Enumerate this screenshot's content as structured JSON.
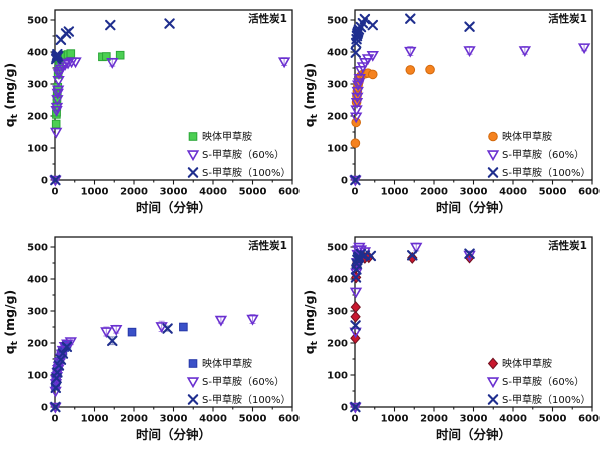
{
  "page": {
    "background": "#ffffff",
    "figure_type": "2x2 adsorption kinetics scatter plots"
  },
  "chart_data": [
    {
      "type": "scatter",
      "panel": "top-left",
      "title": "活性炭1",
      "xlabel": "时间（分钟）",
      "ylabel": "qt (mg/g)",
      "ylabel_main": "q",
      "ylabel_sub": "t",
      "ylabel_units": " (mg/g)",
      "xlim": [
        0,
        6000
      ],
      "ylim": [
        0,
        500
      ],
      "xticks": [
        0,
        1000,
        2000,
        3000,
        4000,
        5000,
        6000
      ],
      "yticks": [
        0,
        100,
        200,
        300,
        400,
        500
      ],
      "legend_position": "bottom-right-inside",
      "grid": false,
      "series": [
        {
          "name": "映体甲草胺",
          "marker": "square",
          "fill": "#4ccf53",
          "stroke": "#2aa637",
          "points": [
            [
              30,
              175
            ],
            [
              35,
              205
            ],
            [
              40,
              212
            ],
            [
              45,
              230
            ],
            [
              50,
              255
            ],
            [
              55,
              270
            ],
            [
              60,
              280
            ],
            [
              70,
              290
            ],
            [
              80,
              330
            ],
            [
              90,
              345
            ],
            [
              100,
              362
            ],
            [
              120,
              370
            ],
            [
              150,
              378
            ],
            [
              200,
              385
            ],
            [
              260,
              390
            ],
            [
              330,
              392
            ],
            [
              400,
              395
            ],
            [
              1200,
              385,
              10
            ],
            [
              1300,
              386
            ],
            [
              1650,
              390
            ]
          ]
        },
        {
          "name": "S-甲草胺（60%）",
          "marker": "triangle-down-open",
          "fill": "none",
          "stroke": "#6a30d0",
          "points": [
            [
              10,
              0
            ],
            [
              30,
              150
            ],
            [
              40,
              218
            ],
            [
              50,
              228
            ],
            [
              60,
              252
            ],
            [
              70,
              272
            ],
            [
              80,
              282
            ],
            [
              90,
              312
            ],
            [
              100,
              333
            ],
            [
              120,
              340
            ],
            [
              150,
              347
            ],
            [
              200,
              355
            ],
            [
              260,
              362
            ],
            [
              330,
              366
            ],
            [
              420,
              370
            ],
            [
              520,
              370
            ],
            [
              1450,
              368,
              12
            ],
            [
              5800,
              370,
              12
            ]
          ]
        },
        {
          "name": "S-甲草胺（100%）",
          "marker": "x",
          "fill": "none",
          "stroke": "#1f2e8e",
          "points": [
            [
              10,
              0
            ],
            [
              30,
              378
            ],
            [
              40,
              383
            ],
            [
              50,
              388
            ],
            [
              60,
              393
            ],
            [
              80,
              386
            ],
            [
              150,
              438
            ],
            [
              280,
              458
            ],
            [
              350,
              464
            ],
            [
              1400,
              484
            ],
            [
              2900,
              489
            ]
          ]
        }
      ]
    },
    {
      "type": "scatter",
      "panel": "top-right",
      "title": "活性炭1",
      "xlabel": "时间（分钟）",
      "ylabel": "qt (mg/g)",
      "ylabel_main": "q",
      "ylabel_sub": "t",
      "ylabel_units": " (mg/g)",
      "xlim": [
        0,
        6000
      ],
      "ylim": [
        0,
        500
      ],
      "xticks": [
        0,
        1000,
        2000,
        3000,
        4000,
        5000,
        6000
      ],
      "yticks": [
        0,
        100,
        200,
        300,
        400,
        500
      ],
      "legend_position": "bottom-right-inside",
      "grid": false,
      "series": [
        {
          "name": "映体甲草胺",
          "marker": "circle",
          "fill": "#f5821f",
          "stroke": "#d2690d",
          "points": [
            [
              10,
              115
            ],
            [
              30,
              180
            ],
            [
              40,
              243
            ],
            [
              50,
              262
            ],
            [
              60,
              278
            ],
            [
              70,
              290
            ],
            [
              80,
              298
            ],
            [
              100,
              308
            ],
            [
              120,
              318
            ],
            [
              150,
              325
            ],
            [
              200,
              330
            ],
            [
              260,
              332
            ],
            [
              330,
              334
            ],
            [
              450,
              330
            ],
            [
              1400,
              344,
              10
            ],
            [
              1900,
              345
            ]
          ]
        },
        {
          "name": "S-甲草胺（60%）",
          "marker": "triangle-down-open",
          "fill": "none",
          "stroke": "#6a30d0",
          "points": [
            [
              10,
              0
            ],
            [
              30,
              198
            ],
            [
              40,
              220
            ],
            [
              50,
              243
            ],
            [
              60,
              260
            ],
            [
              70,
              278
            ],
            [
              80,
              298
            ],
            [
              100,
              305
            ],
            [
              120,
              318
            ],
            [
              150,
              343
            ],
            [
              200,
              355
            ],
            [
              260,
              368
            ],
            [
              330,
              380
            ],
            [
              450,
              390
            ],
            [
              1400,
              403,
              14
            ],
            [
              2900,
              405,
              12
            ],
            [
              4300,
              405,
              12
            ],
            [
              5800,
              414,
              10
            ]
          ]
        },
        {
          "name": "S-甲草胺（100%）",
          "marker": "x",
          "fill": "none",
          "stroke": "#1f2e8e",
          "points": [
            [
              10,
              0
            ],
            [
              20,
              398
            ],
            [
              30,
              428
            ],
            [
              40,
              440
            ],
            [
              50,
              450
            ],
            [
              60,
              456
            ],
            [
              70,
              460
            ],
            [
              80,
              464
            ],
            [
              100,
              470
            ],
            [
              150,
              478
            ],
            [
              200,
              490
            ],
            [
              250,
              503
            ],
            [
              450,
              484
            ],
            [
              1400,
              504
            ],
            [
              2900,
              479
            ]
          ]
        }
      ]
    },
    {
      "type": "scatter",
      "panel": "bottom-left",
      "title": "活性炭1",
      "xlabel": "时间（分钟）",
      "ylabel": "qt (mg/g)",
      "ylabel_main": "q",
      "ylabel_sub": "t",
      "ylabel_units": " (mg/g)",
      "xlim": [
        0,
        6000
      ],
      "ylim": [
        0,
        500
      ],
      "xticks": [
        0,
        1000,
        2000,
        3000,
        4000,
        5000,
        6000
      ],
      "yticks": [
        0,
        100,
        200,
        300,
        400,
        500
      ],
      "legend_position": "bottom-right-inside",
      "grid": false,
      "series": [
        {
          "name": "映体甲草胺",
          "marker": "square",
          "fill": "#3a50c8",
          "stroke": "#2638a8",
          "points": [
            [
              10,
              65
            ],
            [
              20,
              78
            ],
            [
              30,
              88
            ],
            [
              40,
              98
            ],
            [
              50,
              110
            ],
            [
              60,
              120
            ],
            [
              80,
              130
            ],
            [
              100,
              142
            ],
            [
              150,
              160
            ],
            [
              200,
              174
            ],
            [
              250,
              186
            ],
            [
              300,
              196
            ],
            [
              1950,
              234,
              10
            ],
            [
              3250,
              250,
              8
            ]
          ]
        },
        {
          "name": "S-甲草胺（60%）",
          "marker": "triangle-down-open",
          "fill": "none",
          "stroke": "#6a30d0",
          "points": [
            [
              10,
              0
            ],
            [
              15,
              50
            ],
            [
              25,
              74
            ],
            [
              35,
              86
            ],
            [
              50,
              96
            ],
            [
              65,
              108
            ],
            [
              80,
              118
            ],
            [
              100,
              128
            ],
            [
              120,
              140
            ],
            [
              150,
              154
            ],
            [
              175,
              166
            ],
            [
              200,
              178
            ],
            [
              250,
              190
            ],
            [
              310,
              198
            ],
            [
              400,
              205,
              10
            ],
            [
              1300,
              236,
              14
            ],
            [
              1550,
              243,
              12
            ],
            [
              2700,
              252,
              16
            ],
            [
              4200,
              272,
              10
            ],
            [
              5000,
              275,
              14
            ]
          ]
        },
        {
          "name": "S-甲草胺（100%）",
          "marker": "x",
          "fill": "none",
          "stroke": "#1f2e8e",
          "points": [
            [
              10,
              0
            ],
            [
              20,
              60
            ],
            [
              40,
              90
            ],
            [
              60,
              108
            ],
            [
              100,
              130
            ],
            [
              150,
              148
            ],
            [
              200,
              167
            ],
            [
              300,
              188
            ],
            [
              1450,
              207,
              12
            ],
            [
              2850,
              245,
              8
            ]
          ]
        }
      ]
    },
    {
      "type": "scatter",
      "panel": "bottom-right",
      "title": "活性炭1",
      "xlabel": "时间（分钟）",
      "ylabel": "qt (mg/g)",
      "ylabel_main": "q",
      "ylabel_sub": "t",
      "ylabel_units": " (mg/g)",
      "xlim": [
        0,
        6000
      ],
      "ylim": [
        0,
        500
      ],
      "xticks": [
        0,
        1000,
        2000,
        3000,
        4000,
        5000,
        6000
      ],
      "yticks": [
        0,
        100,
        200,
        300,
        400,
        500
      ],
      "legend_position": "bottom-right-inside",
      "grid": false,
      "series": [
        {
          "name": "映体甲草胺",
          "marker": "diamond",
          "fill": "#c9182e",
          "stroke": "#70101f",
          "points": [
            [
              10,
              215
            ],
            [
              15,
              282
            ],
            [
              20,
              312
            ],
            [
              30,
              405
            ],
            [
              40,
              438
            ],
            [
              50,
              448
            ],
            [
              60,
              454
            ],
            [
              80,
              458
            ],
            [
              100,
              461
            ],
            [
              150,
              464
            ],
            [
              250,
              466
            ],
            [
              350,
              468
            ],
            [
              1450,
              466
            ],
            [
              2900,
              467
            ]
          ]
        },
        {
          "name": "S-甲草胺（60%）",
          "marker": "triangle-down-open",
          "fill": "none",
          "stroke": "#6a30d0",
          "points": [
            [
              10,
              0
            ],
            [
              15,
              235
            ],
            [
              25,
              360
            ],
            [
              35,
              420
            ],
            [
              50,
              452
            ],
            [
              65,
              478
            ],
            [
              85,
              492
            ],
            [
              110,
              500
            ],
            [
              150,
              492
            ],
            [
              250,
              486
            ],
            [
              1550,
              500,
              12
            ],
            [
              2900,
              475
            ]
          ]
        },
        {
          "name": "S-甲草胺（100%）",
          "marker": "x",
          "fill": "none",
          "stroke": "#1f2e8e",
          "points": [
            [
              10,
              0
            ],
            [
              15,
              255
            ],
            [
              25,
              405
            ],
            [
              35,
              430
            ],
            [
              45,
              448
            ],
            [
              60,
              460
            ],
            [
              80,
              466
            ],
            [
              100,
              470
            ],
            [
              150,
              478
            ],
            [
              250,
              474
            ],
            [
              400,
              472
            ],
            [
              1450,
              474
            ],
            [
              2900,
              479
            ]
          ]
        }
      ]
    }
  ],
  "style": {
    "frame_color": "#1a1a1a",
    "text_color": "#111111",
    "tick_label_size": 10,
    "axis_label_size": 12.5,
    "title_size": 10.5,
    "legend_size": 10
  }
}
